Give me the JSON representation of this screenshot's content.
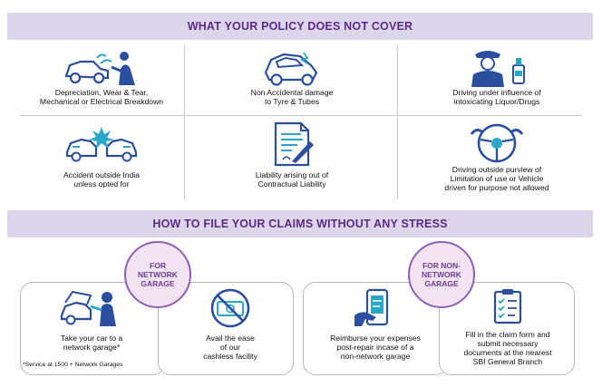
{
  "not_covered": {
    "title": "WHAT YOUR POLICY DOES NOT COVER",
    "items": [
      {
        "label": "Depreciation, Wear & Tear,\nMechanical or Electrical Breakdown",
        "icon": "car-breakdown-icon"
      },
      {
        "label": "Non Accidental damage\nto Tyre & Tubes",
        "icon": "damaged-car-icon"
      },
      {
        "label": "Driving under influence of\nintoxicating Liquor/Drugs",
        "icon": "drunk-driver-icon"
      },
      {
        "label": "Accident outside India\nunless opted for",
        "icon": "car-collision-icon"
      },
      {
        "label": "Liability arising out of\nContractual Liability",
        "icon": "contract-document-icon"
      },
      {
        "label": "Driving outside purview of\nLimitation of use or Vehicle\ndriven for purpose not allowed",
        "icon": "steering-wheel-icon"
      }
    ]
  },
  "claims": {
    "title": "HOW TO FILE YOUR CLAIMS WITHOUT ANY STRESS",
    "network": {
      "badge": "FOR\nNETWORK\nGARAGE",
      "steps": [
        {
          "label": "Take your car to a\nnetwork garage*",
          "icon": "mechanic-icon"
        },
        {
          "label": "Avail the ease\nof our\ncashless facility",
          "icon": "no-cash-icon"
        }
      ],
      "note": "*Service at 1500 + Network Garages"
    },
    "non_network": {
      "badge": "FOR NON-\nNETWORK\nGARAGE",
      "steps": [
        {
          "label": "Reimburse your expenses\npost-repair incase of a\nnon-network garage",
          "icon": "phone-payment-icon"
        },
        {
          "label": "Fill in the claim form and\nsubmit necessary\ndocuments at the nearest\nSBI General Branch",
          "icon": "claim-form-icon"
        }
      ]
    }
  },
  "colors": {
    "accent": "#5b2a86",
    "banner_bg": "#ddd6ea",
    "icon_blue": "#2b4f9e",
    "icon_teal": "#2aa7c6"
  }
}
